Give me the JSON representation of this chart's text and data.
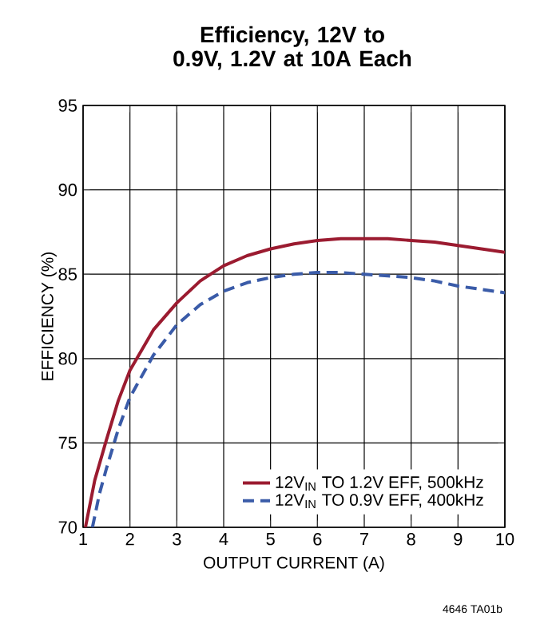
{
  "chart_data": {
    "type": "line",
    "title": "Efficiency, 12V to 0.9V, 1.2V at 10A Each",
    "xlabel": "OUTPUT CURRENT (A)",
    "ylabel": "EFFICIENCY (%)",
    "xlim": [
      1,
      10
    ],
    "xticks": [
      1,
      2,
      3,
      4,
      5,
      6,
      7,
      8,
      9,
      10
    ],
    "ylim": [
      70,
      95
    ],
    "yticks": [
      70,
      75,
      80,
      85,
      90,
      95
    ],
    "grid": true,
    "legend": "bottom right",
    "marker": "none",
    "series": [
      {
        "name": "12V$_{IN}$ TO 1.2V EFF, 500kHz",
        "color": "#9b1b30",
        "line_style": "solid",
        "x": [
          1.05,
          1.25,
          1.5,
          1.75,
          2,
          2.5,
          3,
          3.5,
          4,
          4.5,
          5,
          5.5,
          6,
          6.5,
          7,
          7.5,
          8,
          8.5,
          9,
          9.5,
          10
        ],
        "values": [
          70,
          72.8,
          75.2,
          77.5,
          79.3,
          81.7,
          83.3,
          84.6,
          85.5,
          86.1,
          86.5,
          86.8,
          87.0,
          87.1,
          87.1,
          87.1,
          87.0,
          86.9,
          86.7,
          86.5,
          86.3
        ]
      },
      {
        "name": "12V$_{IN}$ TO 0.9V EFF, 400kHz",
        "color": "#3a5ba8",
        "line_style": "dashed",
        "x": [
          1.2,
          1.35,
          1.5,
          1.75,
          2,
          2.5,
          3,
          3.5,
          4,
          4.5,
          5,
          5.5,
          6,
          6.5,
          7,
          7.5,
          8,
          8.5,
          9,
          9.5,
          10
        ],
        "values": [
          70,
          72,
          73.5,
          75.8,
          77.7,
          80.2,
          82,
          83.2,
          84,
          84.5,
          84.8,
          85.0,
          85.1,
          85.1,
          85.0,
          84.9,
          84.8,
          84.6,
          84.3,
          84.1,
          83.9
        ]
      }
    ],
    "annotations": [
      "4646 TA01b"
    ]
  }
}
